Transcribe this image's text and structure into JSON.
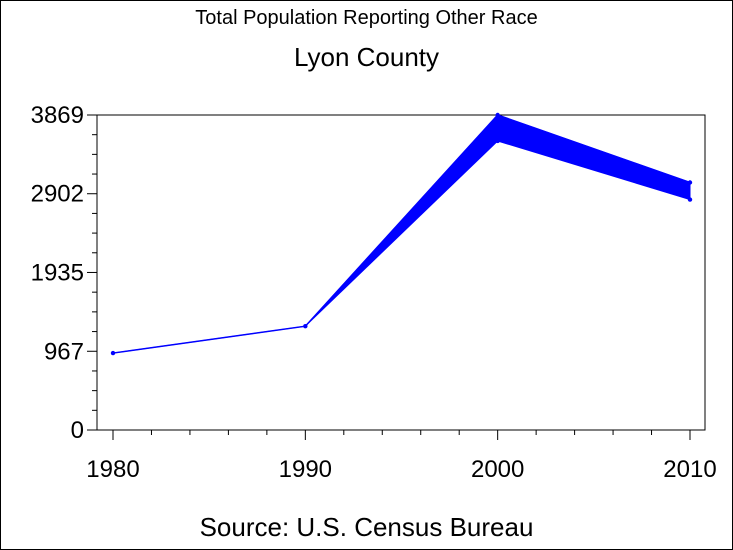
{
  "chart_data": {
    "type": "line",
    "title": "Total Population Reporting Other Race",
    "subtitle": "Lyon County",
    "source": "Source: U.S. Census Bureau",
    "x": [
      1980,
      1990,
      2000,
      2010
    ],
    "xlim": [
      1980,
      2010
    ],
    "ylim": [
      0,
      3869
    ],
    "y_ticks": [
      0,
      967,
      1935,
      2902,
      3869
    ],
    "x_ticks": [
      1980,
      1990,
      2000,
      2010
    ],
    "series": [
      {
        "values": [
          945,
          1275,
          3869,
          3040
        ],
        "color": "#0000ff"
      }
    ],
    "band_lower": [
      945,
      1275,
      3550,
      2830
    ],
    "grid": false
  }
}
